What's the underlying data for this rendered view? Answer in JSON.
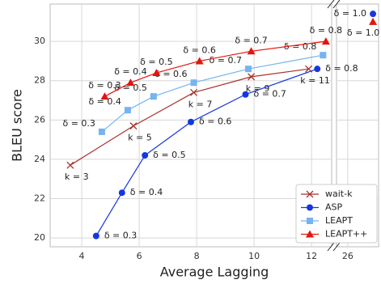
{
  "chart_data": {
    "type": "line",
    "xlabel": "Average Lagging",
    "ylabel": "BLEU score",
    "xlim": [
      2.9,
      12.7
    ],
    "xticks": [
      4,
      6,
      8,
      10,
      12
    ],
    "x2lim": [
      25.6,
      27.1
    ],
    "x2ticks": [
      26
    ],
    "ylim": [
      19.55,
      31.9
    ],
    "yticks": [
      20,
      22,
      24,
      26,
      28,
      30
    ],
    "grid": true,
    "legend": "lower right",
    "series": [
      {
        "name": "wait-k",
        "color": "#a8322c",
        "marker": "x",
        "x": [
          3.6,
          5.8,
          7.9,
          9.9,
          11.9
        ],
        "values": [
          23.7,
          25.7,
          27.4,
          28.2,
          28.6
        ],
        "labels": [
          "k = 3",
          "k = 5",
          "k = 7",
          "k = 9",
          "k = 11"
        ]
      },
      {
        "name": "ASP",
        "color": "#1537e0",
        "marker": "circle",
        "x": [
          4.5,
          5.4,
          6.2,
          7.8,
          9.7,
          12.2,
          26.9
        ],
        "values": [
          20.1,
          22.3,
          24.2,
          25.9,
          27.3,
          28.6,
          31.4
        ],
        "labels": [
          "δ = 0.3",
          "δ = 0.4",
          "δ = 0.5",
          "δ = 0.6",
          "δ = 0.7",
          "δ = 0.8",
          "δ = 1.0"
        ]
      },
      {
        "name": "LEAPT",
        "color": "#74b4f0",
        "marker": "square",
        "x": [
          4.7,
          5.6,
          6.5,
          7.9,
          9.8,
          12.4
        ],
        "values": [
          25.4,
          26.5,
          27.2,
          27.9,
          28.6,
          29.3
        ],
        "labels": [
          "δ = 0.3",
          "δ = 0.4",
          "δ = 0.5",
          "δ = 0.6",
          "δ = 0.7",
          "δ = 0.8"
        ]
      },
      {
        "name": "LEAPT++",
        "color": "#e5140f",
        "marker": "triangle",
        "x": [
          4.8,
          5.7,
          6.6,
          8.1,
          9.9,
          12.5,
          26.9
        ],
        "values": [
          27.2,
          27.9,
          28.4,
          29.0,
          29.5,
          30.0,
          31.0
        ],
        "labels": [
          "δ = 0.3",
          "δ = 0.4",
          "δ = 0.5",
          "δ = 0.6",
          "δ = 0.7",
          "δ = 0.8",
          "δ = 1.0"
        ]
      }
    ]
  }
}
